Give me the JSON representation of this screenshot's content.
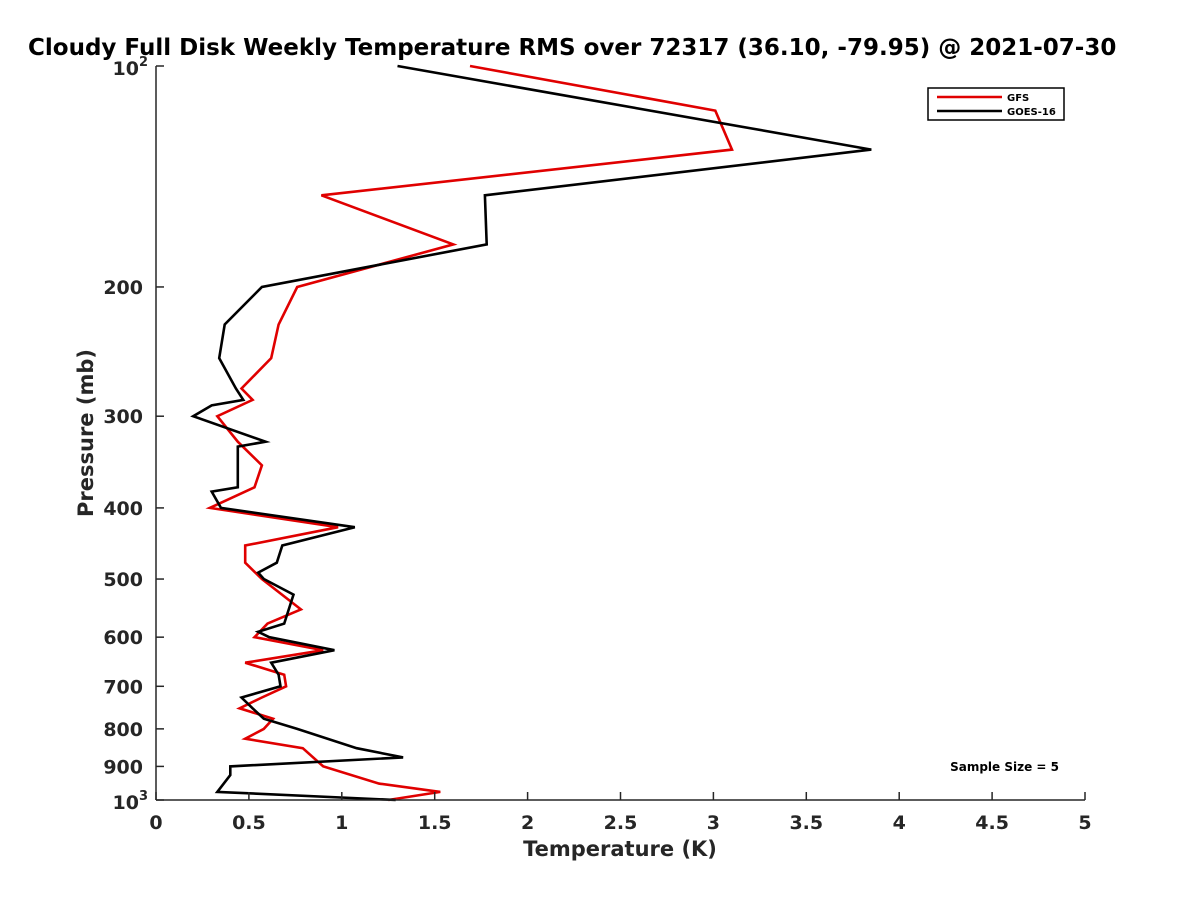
{
  "chart_data": {
    "type": "line",
    "title": "Cloudy Full Disk Weekly Temperature RMS over 72317 (36.10, -79.95) @ 2021-07-30",
    "xlabel": "Temperature (K)",
    "ylabel": "Pressure (mb)",
    "xlim": [
      0,
      5
    ],
    "ylim": [
      100,
      1000
    ],
    "y_scale": "log",
    "y_reversed": true,
    "grid": false,
    "legend_position": "top-right",
    "x_ticks": [
      {
        "value": 0,
        "label": "0"
      },
      {
        "value": 0.5,
        "label": "0.5"
      },
      {
        "value": 1,
        "label": "1"
      },
      {
        "value": 1.5,
        "label": "1.5"
      },
      {
        "value": 2,
        "label": "2"
      },
      {
        "value": 2.5,
        "label": "2.5"
      },
      {
        "value": 3,
        "label": "3"
      },
      {
        "value": 3.5,
        "label": "3.5"
      },
      {
        "value": 4,
        "label": "4"
      },
      {
        "value": 4.5,
        "label": "4.5"
      },
      {
        "value": 5,
        "label": "5"
      }
    ],
    "y_ticks": [
      {
        "value": 100,
        "base": "10",
        "exp": "2"
      },
      {
        "value": 200,
        "label": "200"
      },
      {
        "value": 300,
        "label": "300"
      },
      {
        "value": 400,
        "label": "400"
      },
      {
        "value": 500,
        "label": "500"
      },
      {
        "value": 600,
        "label": "600"
      },
      {
        "value": 700,
        "label": "700"
      },
      {
        "value": 800,
        "label": "800"
      },
      {
        "value": 900,
        "label": "900"
      },
      {
        "value": 1000,
        "base": "10",
        "exp": "3"
      }
    ],
    "series": [
      {
        "name": "GFS",
        "color": "#e00000",
        "points": [
          {
            "x": 1.69,
            "y": 100
          },
          {
            "x": 3.01,
            "y": 115
          },
          {
            "x": 3.1,
            "y": 130
          },
          {
            "x": 0.89,
            "y": 150
          },
          {
            "x": 1.6,
            "y": 175
          },
          {
            "x": 0.76,
            "y": 200
          },
          {
            "x": 0.66,
            "y": 225
          },
          {
            "x": 0.62,
            "y": 250
          },
          {
            "x": 0.46,
            "y": 275
          },
          {
            "x": 0.52,
            "y": 285
          },
          {
            "x": 0.33,
            "y": 300
          },
          {
            "x": 0.44,
            "y": 325
          },
          {
            "x": 0.57,
            "y": 350
          },
          {
            "x": 0.53,
            "y": 375
          },
          {
            "x": 0.29,
            "y": 400
          },
          {
            "x": 0.98,
            "y": 425
          },
          {
            "x": 0.48,
            "y": 450
          },
          {
            "x": 0.48,
            "y": 475
          },
          {
            "x": 0.57,
            "y": 500
          },
          {
            "x": 0.78,
            "y": 550
          },
          {
            "x": 0.6,
            "y": 575
          },
          {
            "x": 0.53,
            "y": 600
          },
          {
            "x": 0.9,
            "y": 625
          },
          {
            "x": 0.48,
            "y": 650
          },
          {
            "x": 0.69,
            "y": 675
          },
          {
            "x": 0.7,
            "y": 700
          },
          {
            "x": 0.57,
            "y": 725
          },
          {
            "x": 0.45,
            "y": 750
          },
          {
            "x": 0.63,
            "y": 775
          },
          {
            "x": 0.58,
            "y": 800
          },
          {
            "x": 0.48,
            "y": 825
          },
          {
            "x": 0.79,
            "y": 850
          },
          {
            "x": 0.9,
            "y": 900
          },
          {
            "x": 1.2,
            "y": 950
          },
          {
            "x": 1.53,
            "y": 975
          },
          {
            "x": 1.25,
            "y": 1000
          }
        ]
      },
      {
        "name": "GOES-16",
        "color": "#000000",
        "points": [
          {
            "x": 1.3,
            "y": 100
          },
          {
            "x": 3.85,
            "y": 130
          },
          {
            "x": 1.77,
            "y": 150
          },
          {
            "x": 1.78,
            "y": 175
          },
          {
            "x": 0.57,
            "y": 200
          },
          {
            "x": 0.37,
            "y": 225
          },
          {
            "x": 0.34,
            "y": 250
          },
          {
            "x": 0.43,
            "y": 275
          },
          {
            "x": 0.47,
            "y": 285
          },
          {
            "x": 0.3,
            "y": 290
          },
          {
            "x": 0.2,
            "y": 300
          },
          {
            "x": 0.59,
            "y": 325
          },
          {
            "x": 0.44,
            "y": 330
          },
          {
            "x": 0.44,
            "y": 375
          },
          {
            "x": 0.3,
            "y": 380
          },
          {
            "x": 0.35,
            "y": 400
          },
          {
            "x": 1.07,
            "y": 425
          },
          {
            "x": 0.68,
            "y": 450
          },
          {
            "x": 0.65,
            "y": 475
          },
          {
            "x": 0.55,
            "y": 490
          },
          {
            "x": 0.58,
            "y": 500
          },
          {
            "x": 0.74,
            "y": 525
          },
          {
            "x": 0.69,
            "y": 575
          },
          {
            "x": 0.55,
            "y": 590
          },
          {
            "x": 0.61,
            "y": 600
          },
          {
            "x": 0.96,
            "y": 625
          },
          {
            "x": 0.62,
            "y": 650
          },
          {
            "x": 0.66,
            "y": 675
          },
          {
            "x": 0.67,
            "y": 700
          },
          {
            "x": 0.46,
            "y": 725
          },
          {
            "x": 0.52,
            "y": 750
          },
          {
            "x": 0.58,
            "y": 775
          },
          {
            "x": 0.76,
            "y": 800
          },
          {
            "x": 1.08,
            "y": 850
          },
          {
            "x": 1.33,
            "y": 875
          },
          {
            "x": 0.4,
            "y": 900
          },
          {
            "x": 0.4,
            "y": 925
          },
          {
            "x": 0.33,
            "y": 975
          },
          {
            "x": 1.29,
            "y": 1000
          }
        ]
      }
    ],
    "annotations": [
      {
        "text": "Sample Size = 5",
        "position": "bottom-right"
      }
    ]
  }
}
